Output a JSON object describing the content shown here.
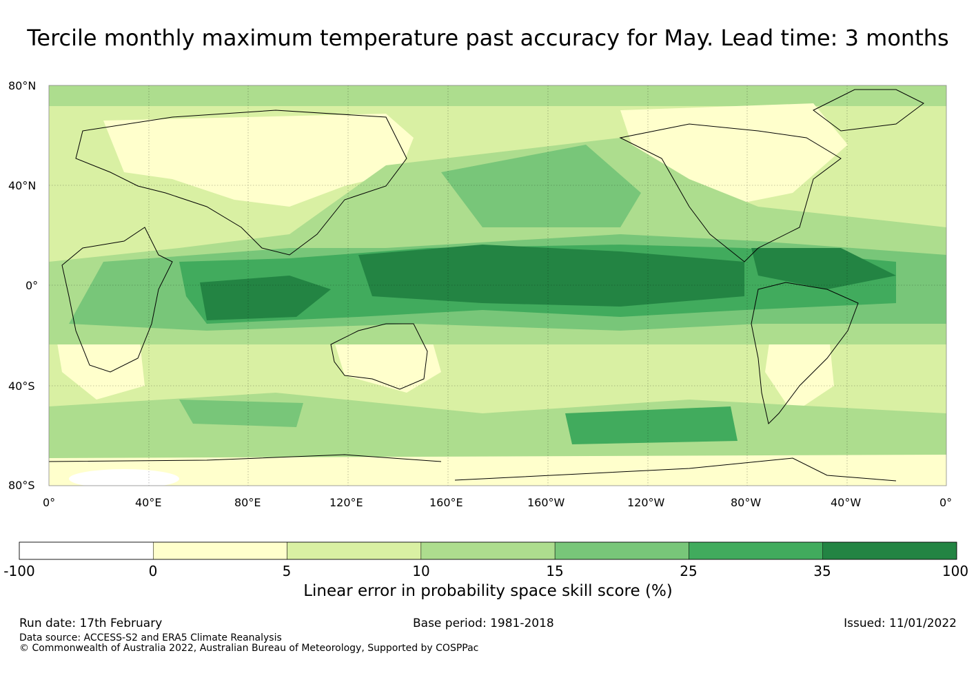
{
  "title": "Tercile monthly maximum temperature past accuracy for May. Lead time: 3 months",
  "map": {
    "lat_labels": [
      "80°N",
      "40°N",
      "0°",
      "40°S",
      "80°S"
    ],
    "lon_labels": [
      "0°",
      "40°E",
      "80°E",
      "120°E",
      "160°E",
      "160°W",
      "120°W",
      "80°W",
      "40°W",
      "0°"
    ]
  },
  "colorbar": {
    "label": "Linear error in probability space skill score (%)",
    "ticks": [
      "-100",
      "0",
      "5",
      "10",
      "15",
      "25",
      "35",
      "100"
    ],
    "colors": [
      "#ffffff",
      "#ffffcc",
      "#d9f0a3",
      "#addd8e",
      "#78c679",
      "#41ab5d",
      "#238443"
    ]
  },
  "footer": {
    "run_date": "Run date: 17th February",
    "base_period": "Base period: 1981-2018",
    "issued": "Issued: 11/01/2022",
    "data_source": "Data source: ACCESS-S2 and ERA5 Climate Reanalysis",
    "copyright": "© Commonwealth of Australia 2022, Australian Bureau of Meteorology, Supported by COSPPac"
  }
}
